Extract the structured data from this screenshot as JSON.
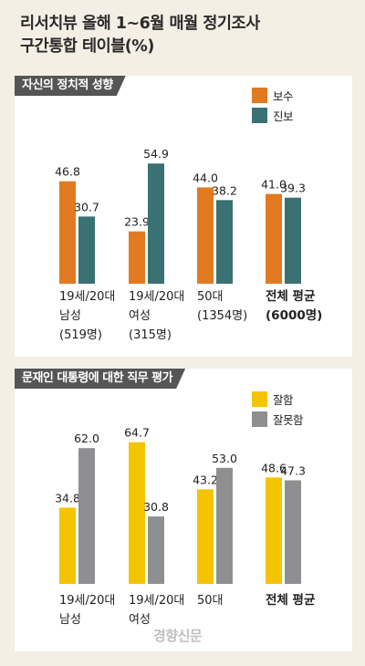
{
  "title": "리서치뷰 올해 1~6월 매월 정기조사\n구간통합 테이블(%)",
  "watermark": "경향신문",
  "colors": {
    "orange": "#e27a22",
    "teal": "#3a7173",
    "yellow": "#f5c400",
    "gray": "#8f8f91"
  },
  "chart_data": [
    {
      "type": "bar",
      "title": "자신의 정치적 성향",
      "categories": [
        "19세/20대\n남성\n(519명)",
        "19세/20대\n여성\n(315명)",
        "50대\n(1354명)",
        "전체 평균\n(6000명)"
      ],
      "series": [
        {
          "name": "보수",
          "values": [
            46.8,
            23.9,
            44.0,
            41.0
          ]
        },
        {
          "name": "진보",
          "values": [
            30.7,
            54.9,
            38.2,
            39.3
          ]
        }
      ],
      "value_labels": [
        [
          "46.8",
          "23.9",
          "44.0",
          "41.0"
        ],
        [
          "30.7",
          "54.9",
          "38.2",
          "39.3"
        ]
      ],
      "bold_categories": [
        3
      ]
    },
    {
      "type": "bar",
      "title": "문재인 대통령에 대한 직무 평가",
      "categories": [
        "19세/20대\n남성",
        "19세/20대\n여성",
        "50대",
        "전체 평균"
      ],
      "series": [
        {
          "name": "잘함",
          "values": [
            34.8,
            64.7,
            43.2,
            48.6
          ]
        },
        {
          "name": "잘못함",
          "values": [
            62.0,
            30.8,
            53.0,
            47.3
          ]
        }
      ],
      "value_labels": [
        [
          "34.8",
          "64.7",
          "43.2",
          "48.6"
        ],
        [
          "62.0",
          "30.8",
          "53.0",
          "47.3"
        ]
      ],
      "bold_categories": [
        3
      ]
    }
  ]
}
